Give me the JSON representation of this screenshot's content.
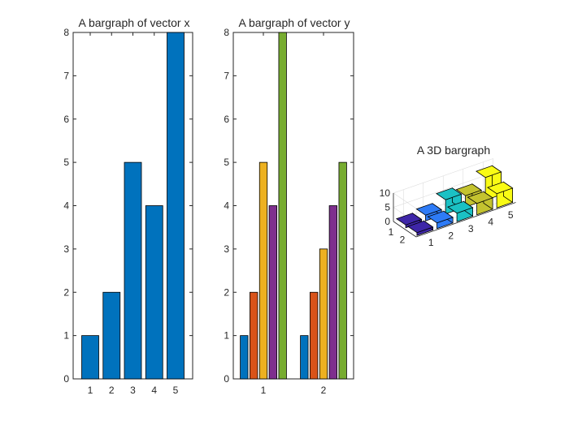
{
  "chart_data": [
    {
      "type": "bar",
      "title": "A bargraph of vector x",
      "categories": [
        "1",
        "2",
        "3",
        "4",
        "5"
      ],
      "values": [
        1,
        2,
        5,
        4,
        8
      ],
      "ylim": [
        0,
        8
      ],
      "yticks": [
        0,
        1,
        2,
        3,
        4,
        5,
        6,
        7,
        8
      ],
      "color": "#0072BD"
    },
    {
      "type": "bar",
      "title": "A bargraph of vector y",
      "categories": [
        "1",
        "2"
      ],
      "series": [
        {
          "values": [
            1,
            1
          ],
          "color": "#0072BD"
        },
        {
          "values": [
            2,
            2
          ],
          "color": "#D95319"
        },
        {
          "values": [
            5,
            3
          ],
          "color": "#EDB120"
        },
        {
          "values": [
            4,
            4
          ],
          "color": "#7E2F8E"
        },
        {
          "values": [
            8,
            5
          ],
          "color": "#77AC30"
        }
      ],
      "ylim": [
        0,
        8
      ],
      "yticks": [
        0,
        1,
        2,
        3,
        4,
        5,
        6,
        7,
        8
      ]
    },
    {
      "type": "bar3d",
      "title": "A 3D bargraph",
      "rows": [
        "1",
        "2"
      ],
      "columns": [
        "1",
        "2",
        "3",
        "4",
        "5"
      ],
      "values": [
        [
          1,
          2,
          5,
          4,
          8
        ],
        [
          1,
          2,
          3,
          4,
          5
        ]
      ],
      "zlim": [
        0,
        10
      ],
      "zticks": [
        "0",
        "5",
        "10"
      ],
      "colormap": [
        "#3E26A8",
        "#2E7BF6",
        "#1BC1C4",
        "#C4C32F",
        "#F9FB15"
      ]
    }
  ]
}
